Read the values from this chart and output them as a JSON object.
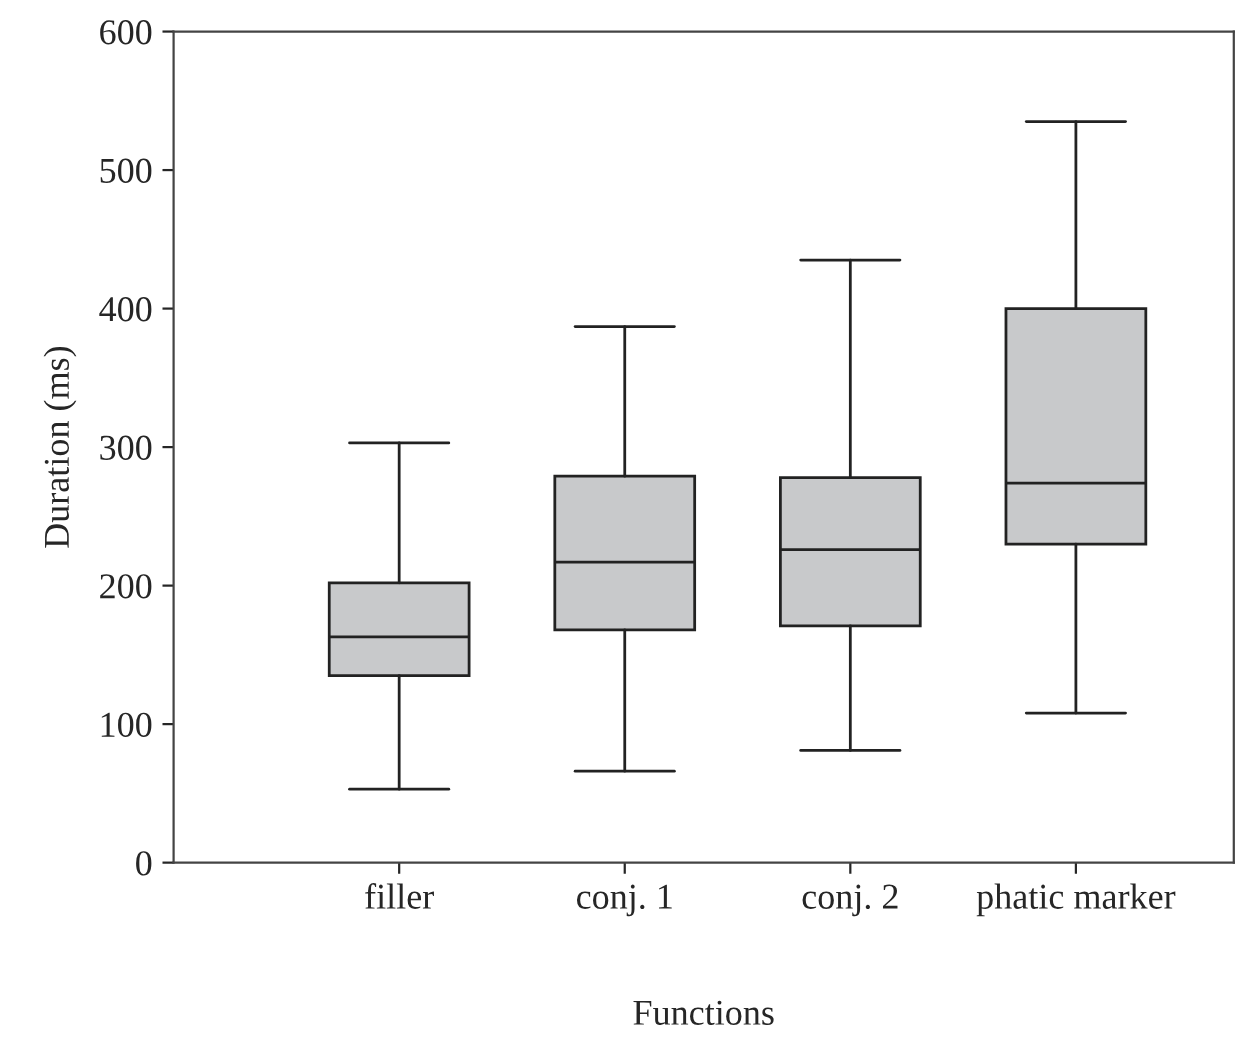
{
  "chart_data": {
    "type": "box",
    "xlabel": "Functions",
    "ylabel": "Duration (ms)",
    "categories": [
      "filler",
      "conj. 1",
      "conj. 2",
      "phatic marker"
    ],
    "boxes": [
      {
        "low": 53,
        "q1": 135,
        "median": 163,
        "q3": 202,
        "high": 303
      },
      {
        "low": 66,
        "q1": 168,
        "median": 217,
        "q3": 279,
        "high": 387
      },
      {
        "low": 81,
        "q1": 171,
        "median": 226,
        "q3": 278,
        "high": 435
      },
      {
        "low": 108,
        "q1": 230,
        "median": 274,
        "q3": 400,
        "high": 535
      }
    ],
    "color": "#c8c9cb",
    "ylim": [
      0,
      600
    ],
    "yticks": [
      0,
      100,
      200,
      300,
      400,
      500,
      600
    ],
    "grid": false,
    "legend": false
  }
}
